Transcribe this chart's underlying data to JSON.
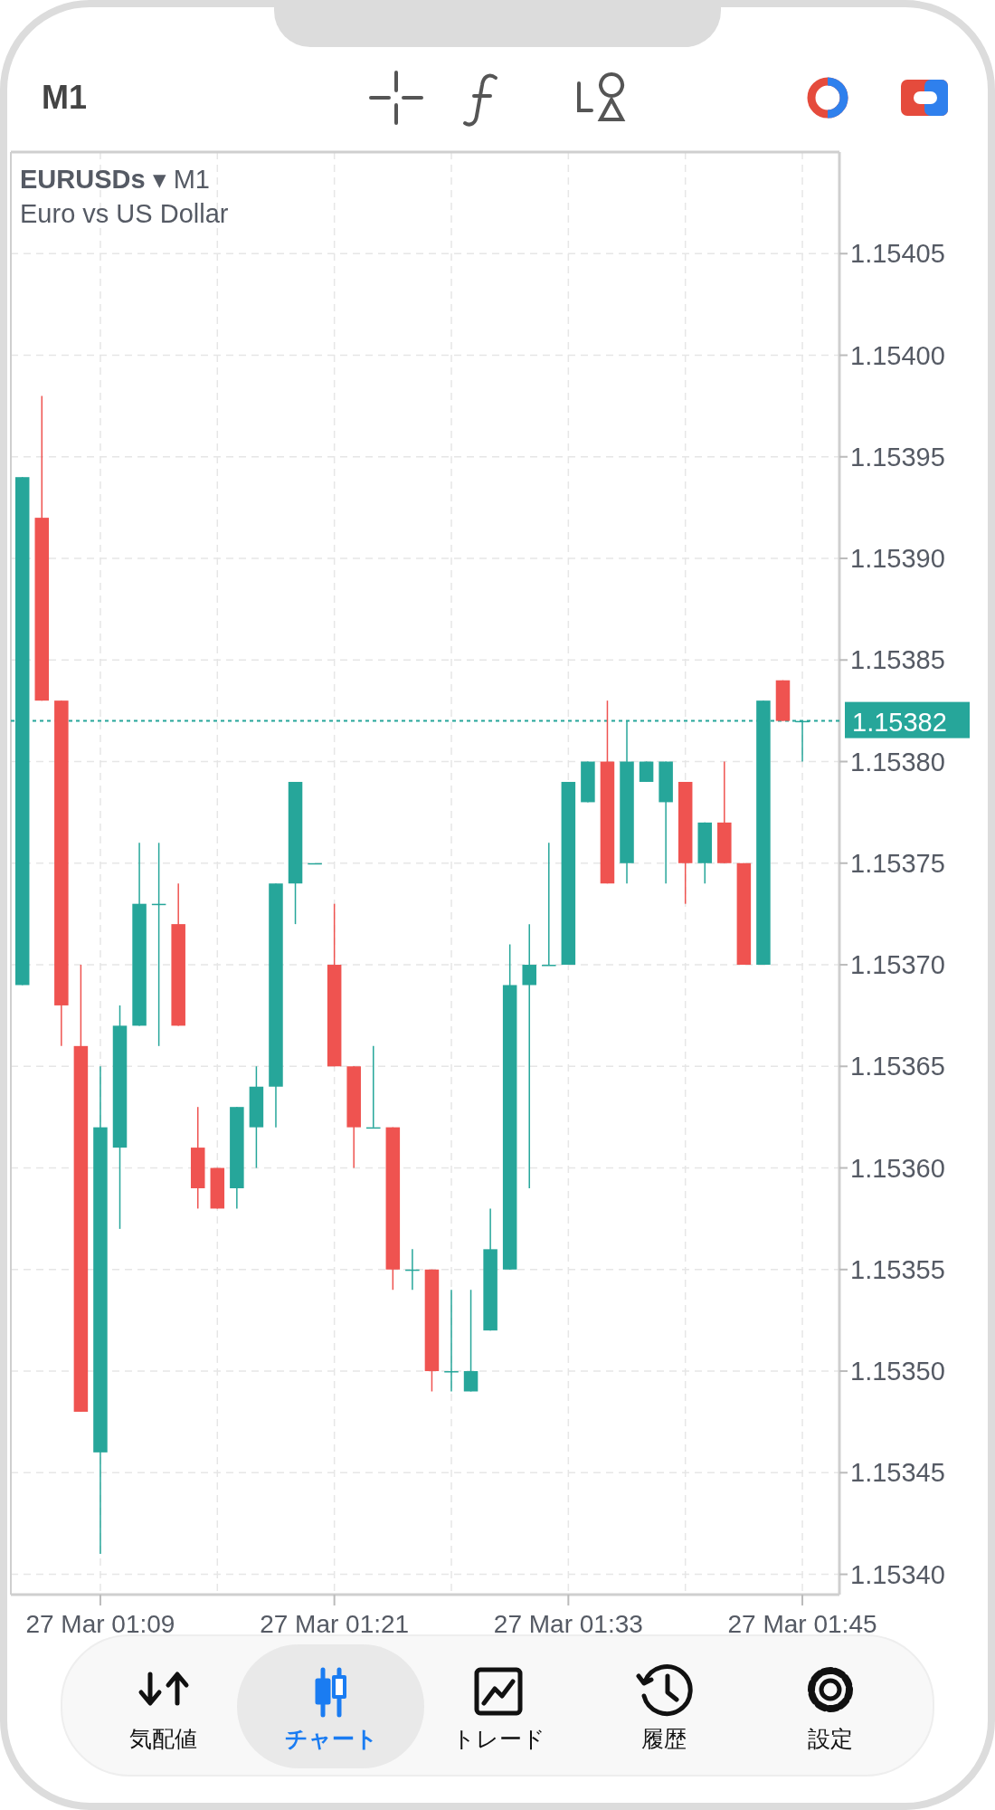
{
  "chart_data": {
    "type": "candlestick",
    "title": "**EURUSDs** ▾ M1",
    "subtitle": "Euro vs US Dollar",
    "categories": [
      null,
      null,
      null,
      null,
      "27 Mar 01:09",
      null,
      null,
      null,
      null,
      null,
      null,
      null,
      null,
      null,
      null,
      null,
      "27 Mar 01:21",
      null,
      null,
      null,
      null,
      null,
      null,
      null,
      null,
      null,
      null,
      null,
      "27 Mar 01:33",
      null,
      null,
      null,
      null,
      null,
      null,
      null,
      null,
      null,
      null,
      null,
      "27 Mar 01:45"
    ],
    "ohlc": [
      [
        1.15369,
        1.15394,
        1.15369,
        1.15394
      ],
      [
        1.15392,
        1.15398,
        1.15383,
        1.15383
      ],
      [
        1.15383,
        1.15383,
        1.15366,
        1.15368
      ],
      [
        1.15366,
        1.1537,
        1.15348,
        1.15348
      ],
      [
        1.15346,
        1.15365,
        1.15341,
        1.15362
      ],
      [
        1.15361,
        1.15368,
        1.15357,
        1.15367
      ],
      [
        1.15367,
        1.15376,
        1.15367,
        1.15373
      ],
      [
        1.15373,
        1.15376,
        1.15366,
        1.15373
      ],
      [
        1.15372,
        1.15374,
        1.15367,
        1.15367
      ],
      [
        1.15361,
        1.15363,
        1.15358,
        1.15359
      ],
      [
        1.1536,
        1.1536,
        1.15358,
        1.15358
      ],
      [
        1.15359,
        1.15363,
        1.15358,
        1.15363
      ],
      [
        1.15362,
        1.15365,
        1.1536,
        1.15364
      ],
      [
        1.15364,
        1.15374,
        1.15362,
        1.15374
      ],
      [
        1.15374,
        1.15379,
        1.15372,
        1.15379
      ],
      [
        1.15375,
        1.15375,
        1.15375,
        1.15375
      ],
      [
        1.1537,
        1.15373,
        1.15365,
        1.15365
      ],
      [
        1.15365,
        1.15365,
        1.1536,
        1.15362
      ],
      [
        1.15362,
        1.15366,
        1.15362,
        1.15362
      ],
      [
        1.15362,
        1.15362,
        1.15354,
        1.15355
      ],
      [
        1.15355,
        1.15356,
        1.15354,
        1.15355
      ],
      [
        1.15355,
        1.15355,
        1.15349,
        1.1535
      ],
      [
        1.1535,
        1.15354,
        1.15349,
        1.1535
      ],
      [
        1.15349,
        1.15354,
        1.15349,
        1.1535
      ],
      [
        1.15352,
        1.15358,
        1.15352,
        1.15356
      ],
      [
        1.15355,
        1.15371,
        1.15355,
        1.15369
      ],
      [
        1.15369,
        1.15372,
        1.15359,
        1.1537
      ],
      [
        1.1537,
        1.15376,
        1.1537,
        1.1537
      ],
      [
        1.1537,
        1.15379,
        1.1537,
        1.15379
      ],
      [
        1.15378,
        1.1538,
        1.15378,
        1.1538
      ],
      [
        1.1538,
        1.15383,
        1.15374,
        1.15374
      ],
      [
        1.15375,
        1.15382,
        1.15374,
        1.1538
      ],
      [
        1.15379,
        1.1538,
        1.15379,
        1.1538
      ],
      [
        1.15378,
        1.1538,
        1.15374,
        1.1538
      ],
      [
        1.15379,
        1.15379,
        1.15373,
        1.15375
      ],
      [
        1.15375,
        1.15377,
        1.15374,
        1.15377
      ],
      [
        1.15377,
        1.1538,
        1.15375,
        1.15375
      ],
      [
        1.15375,
        1.15375,
        1.1537,
        1.1537
      ],
      [
        1.1537,
        1.15383,
        1.1537,
        1.15383
      ],
      [
        1.15384,
        1.15384,
        1.15382,
        1.15382
      ],
      [
        1.15382,
        1.15382,
        1.1538,
        1.15382
      ]
    ],
    "colors": [
      "#26a69a",
      "#ef5350",
      "#ef5350",
      "#ef5350",
      "#26a69a",
      "#26a69a",
      "#26a69a",
      "#26a69a",
      "#ef5350",
      "#ef5350",
      "#ef5350",
      "#26a69a",
      "#26a69a",
      "#26a69a",
      "#26a69a",
      "#26a69a",
      "#ef5350",
      "#ef5350",
      "#26a69a",
      "#ef5350",
      "#26a69a",
      "#ef5350",
      "#26a69a",
      "#26a69a",
      "#26a69a",
      "#26a69a",
      "#26a69a",
      "#26a69a",
      "#26a69a",
      "#26a69a",
      "#ef5350",
      "#26a69a",
      "#26a69a",
      "#26a69a",
      "#ef5350",
      "#26a69a",
      "#ef5350",
      "#ef5350",
      "#26a69a",
      "#ef5350",
      "#26a69a"
    ],
    "ylim": [
      1.15339,
      1.1541
    ],
    "yticks": [
      {
        "value": 1.15405,
        "label": "1.15405"
      },
      {
        "value": 1.154,
        "label": "1.15400"
      },
      {
        "value": 1.15395,
        "label": "1.15395"
      },
      {
        "value": 1.1539,
        "label": "1.15390"
      },
      {
        "value": 1.15385,
        "label": "1.15385"
      },
      {
        "value": 1.1538,
        "label": "1.15380"
      },
      {
        "value": 1.15375,
        "label": "1.15375"
      },
      {
        "value": 1.1537,
        "label": "1.15370"
      },
      {
        "value": 1.15365,
        "label": "1.15365"
      },
      {
        "value": 1.1536,
        "label": "1.15360"
      },
      {
        "value": 1.15355,
        "label": "1.15355"
      },
      {
        "value": 1.1535,
        "label": "1.15350"
      },
      {
        "value": 1.15345,
        "label": "1.15345"
      },
      {
        "value": 1.1534,
        "label": "1.15340"
      }
    ],
    "grid": true,
    "ref_lines": [
      {
        "axis": "y",
        "value": 1.15382,
        "label": "1.15382",
        "color": "#26a69a",
        "line_style": "dotted"
      }
    ],
    "annotations": [
      "M1",
      "気配値",
      "チャート",
      "トレード",
      "履歴",
      "設定"
    ]
  }
}
